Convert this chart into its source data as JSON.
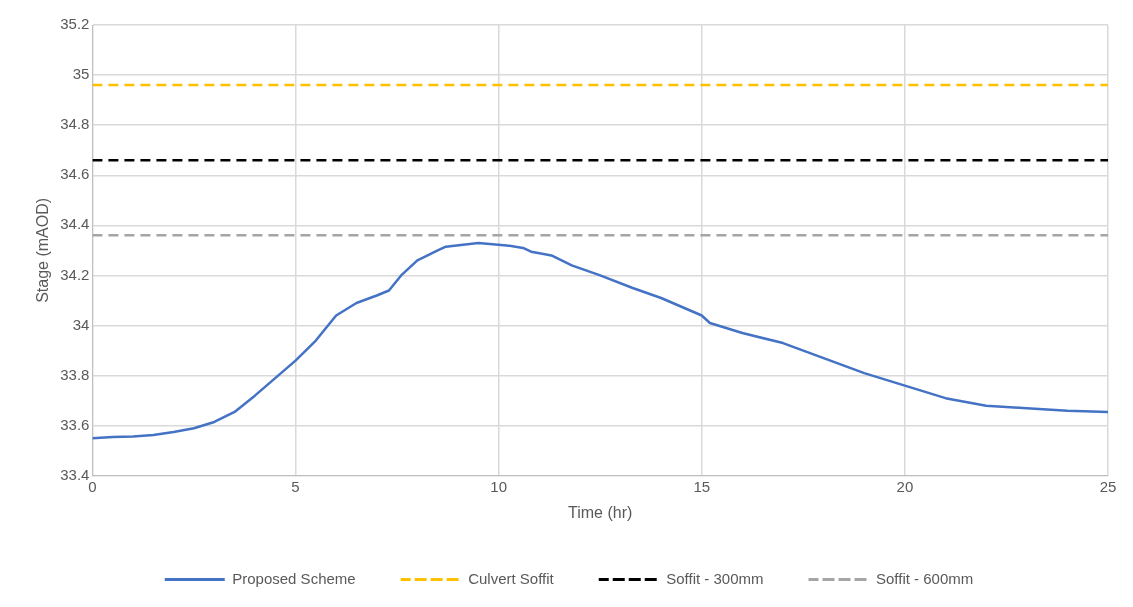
{
  "chart_data": {
    "type": "line",
    "xlabel": "Time (hr)",
    "ylabel": "Stage (mAOD)",
    "xlim": [
      0,
      25
    ],
    "xticks": [
      0,
      5,
      10,
      15,
      20,
      25
    ],
    "ylim": [
      33.4,
      35.2
    ],
    "yticks": [
      33.4,
      33.6,
      33.8,
      34,
      34.2,
      34.4,
      34.6,
      34.8,
      35,
      35.2
    ],
    "grid": true,
    "legend": "bottom",
    "marker": "none",
    "series": [
      {
        "name": "Proposed Scheme",
        "color": "#4472c4",
        "line_style": "solid",
        "x": [
          0,
          0.5,
          1,
          1.5,
          2,
          2.5,
          3,
          3.5,
          4,
          4.5,
          5,
          5.5,
          6,
          6.5,
          7,
          7.3,
          7.6,
          8,
          8.5,
          8.7,
          9.5,
          10.2,
          10.6,
          10.8,
          11.3,
          11.8,
          12.5,
          13.3,
          14,
          15,
          15.2,
          16,
          17,
          18,
          19,
          20,
          21,
          22,
          23,
          24,
          25
        ],
        "values": [
          33.55,
          33.555,
          33.557,
          33.563,
          33.575,
          33.59,
          33.615,
          33.655,
          33.72,
          33.79,
          33.86,
          33.94,
          34.04,
          34.09,
          34.12,
          34.14,
          34.2,
          34.26,
          34.3,
          34.315,
          34.33,
          34.32,
          34.31,
          34.295,
          34.28,
          34.24,
          34.2,
          34.15,
          34.11,
          34.04,
          34.01,
          33.97,
          33.93,
          33.87,
          33.81,
          33.76,
          33.71,
          33.68,
          33.67,
          33.66,
          33.655
        ]
      },
      {
        "name": "Culvert Soffit",
        "color": "#ffc000",
        "line_style": "dashed",
        "x": [
          0,
          25
        ],
        "values": [
          34.96,
          34.96
        ]
      },
      {
        "name": "Soffit - 300mm",
        "color": "#000000",
        "line_style": "dashed",
        "x": [
          0,
          25
        ],
        "values": [
          34.66,
          34.66
        ]
      },
      {
        "name": "Soffit - 600mm",
        "color": "#a5a5a5",
        "line_style": "dashed",
        "x": [
          0,
          25
        ],
        "values": [
          34.36,
          34.36
        ]
      }
    ]
  }
}
